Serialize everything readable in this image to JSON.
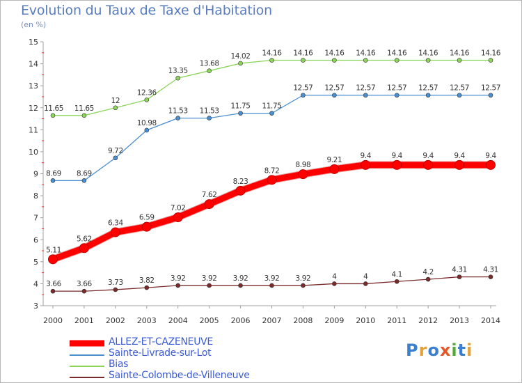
{
  "title": "Evolution du Taux de Taxe d'Habitation",
  "subtitle": "(en %)",
  "logo_text": "Proxiti",
  "logo_letters": [
    {
      "ch": "P",
      "color": "#3a7fd0"
    },
    {
      "ch": "r",
      "color": "#e2a23c"
    },
    {
      "ch": "o",
      "color": "#3a7fd0"
    },
    {
      "ch": "x",
      "color": "#e25a2c"
    },
    {
      "ch": "i",
      "color": "#56a83c"
    },
    {
      "ch": "t",
      "color": "#3a7fd0"
    },
    {
      "ch": "i",
      "color": "#e2a23c"
    }
  ],
  "chart_data": {
    "type": "line",
    "x": [
      "2000",
      "2001",
      "2002",
      "2003",
      "2004",
      "2005",
      "2006",
      "2007",
      "2008",
      "2009",
      "2010",
      "2011",
      "2012",
      "2013",
      "2014"
    ],
    "ylim": [
      3,
      15
    ],
    "yticks": [
      "3",
      "4",
      "5",
      "6",
      "7",
      "8",
      "9",
      "10",
      "11",
      "12",
      "13",
      "14",
      "15"
    ],
    "grid": false,
    "legend_position": "bottom-left",
    "series": [
      {
        "name": "ALLEZ-ET-CAZENEUVE",
        "color": "#ff0000",
        "values": [
          5.11,
          5.62,
          6.34,
          6.59,
          7.02,
          7.62,
          8.23,
          8.72,
          8.98,
          9.21,
          9.4,
          9.4,
          9.4,
          9.4,
          9.4
        ],
        "labels": [
          "5.11",
          "5.62",
          "6.34",
          "6.59",
          "7.02",
          "7.62",
          "8.23",
          "8.72",
          "8.98",
          "9.21",
          "9.4",
          "9.4",
          "9.4",
          "9.4",
          "9.4"
        ],
        "emphasis": true
      },
      {
        "name": "Sainte-Livrade-sur-Lot",
        "color": "#4a8fd0",
        "values": [
          8.69,
          8.69,
          9.72,
          10.98,
          11.53,
          11.53,
          11.75,
          11.75,
          12.57,
          12.57,
          12.57,
          12.57,
          12.57,
          12.57,
          12.57
        ],
        "labels": [
          "8.69",
          "8.69",
          "9.72",
          "10.98",
          "11.53",
          "11.53",
          "11.75",
          "11.75",
          "12.57",
          "12.57",
          "12.57",
          "12.57",
          "12.57",
          "12.57",
          "12.57"
        ]
      },
      {
        "name": "Bias",
        "color": "#8cd45a",
        "values": [
          11.65,
          11.65,
          12,
          12.36,
          13.35,
          13.68,
          14.02,
          14.16,
          14.16,
          14.16,
          14.16,
          14.16,
          14.16,
          14.16,
          14.16
        ],
        "labels": [
          "11.65",
          "11.65",
          "12",
          "12.36",
          "13.35",
          "13.68",
          "14.02",
          "14.16",
          "14.16",
          "14.16",
          "14.16",
          "14.16",
          "14.16",
          "14.16",
          "14.16"
        ]
      },
      {
        "name": "Sainte-Colombe-de-Villeneuve",
        "color": "#7a2a2a",
        "values": [
          3.66,
          3.66,
          3.73,
          3.82,
          3.92,
          3.92,
          3.92,
          3.92,
          3.92,
          4,
          4,
          4.1,
          4.2,
          4.31,
          4.31
        ],
        "labels": [
          "3.66",
          "3.66",
          "3.73",
          "3.82",
          "3.92",
          "3.92",
          "3.92",
          "3.92",
          "3.92",
          "4",
          "4",
          "4.1",
          "4.2",
          "4.31",
          "4.31"
        ]
      }
    ]
  }
}
